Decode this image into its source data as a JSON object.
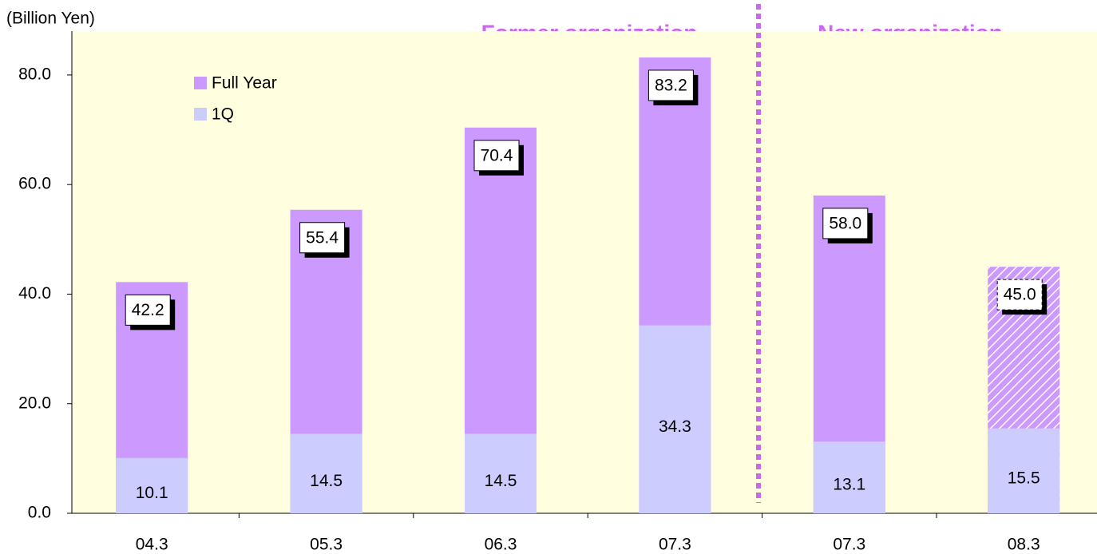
{
  "chart_data": {
    "type": "bar",
    "barmode": "overlay",
    "unit_label": "(Billion Yen)",
    "annotations": [
      "Former organization",
      "New organization"
    ],
    "categories": [
      "04.3",
      "05.3",
      "06.3",
      "07.3",
      "07.3",
      "08.3"
    ],
    "series": [
      {
        "name": "Full Year",
        "color": "#cc99ff",
        "values": [
          42.2,
          55.4,
          70.4,
          83.2,
          58,
          45
        ],
        "value_labels": [
          "42.2",
          "55.4",
          "70.4",
          "83.2",
          "58.0",
          "45.0"
        ],
        "hatch": [
          false,
          false,
          false,
          false,
          false,
          true
        ]
      },
      {
        "name": "1Q",
        "color": "#ccccff",
        "values": [
          10.1,
          14.5,
          14.5,
          34.3,
          13.1,
          15.5
        ],
        "value_labels": [
          "10.1",
          "14.5",
          "14.5",
          "34.3",
          "13.1",
          "15.5"
        ]
      }
    ],
    "ylim": [
      0,
      88
    ],
    "yticks": [
      {
        "value": 0,
        "label": "0.0"
      },
      {
        "value": 20,
        "label": "20.0"
      },
      {
        "value": 40,
        "label": "40.0"
      },
      {
        "value": 60,
        "label": "60.0"
      },
      {
        "value": 80,
        "label": "80.0"
      }
    ],
    "legend": "upper-left",
    "background": "#ffffe0"
  }
}
